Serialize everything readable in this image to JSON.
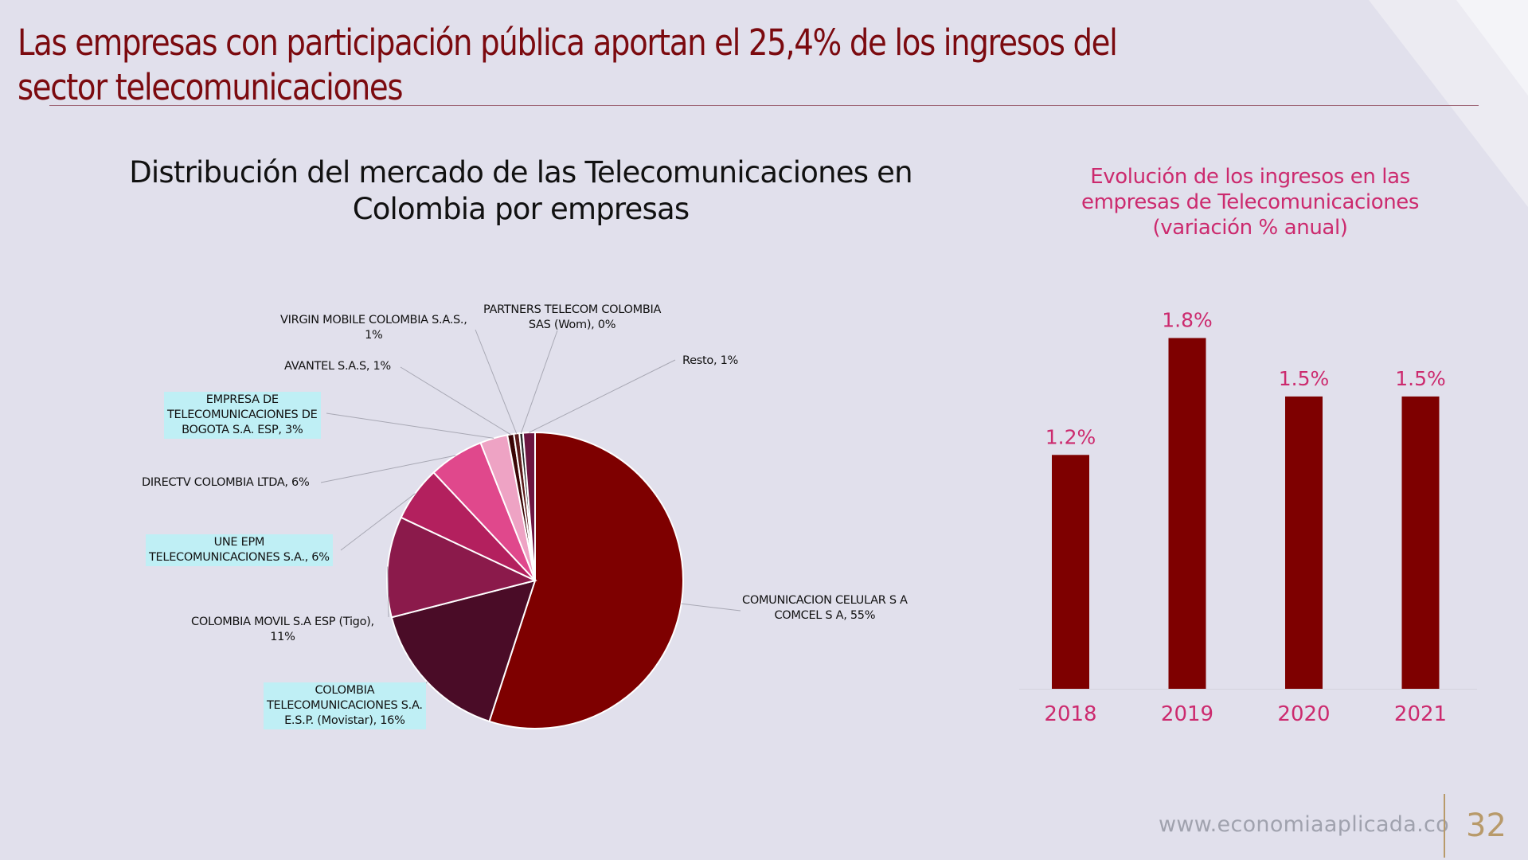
{
  "slide": {
    "title": "Las empresas con participación pública aportan el 25,4% de los ingresos del sector telecomunicaciones",
    "footer_url": "www.economiaaplicada.co",
    "page_number": "32"
  },
  "chart_data": [
    {
      "type": "pie",
      "title": "Distribución del mercado de las Telecomunicaciones en Colombia por empresas",
      "slices": [
        {
          "name": "COMUNICACION CELULAR S A COMCEL S A",
          "value": 55,
          "label": "COMUNICACION CELULAR S A\nCOMCEL S A, 55%",
          "color": "#7e0000",
          "highlight": false
        },
        {
          "name": "COLOMBIA TELECOMUNICACIONES S.A. E.S.P. (Movistar)",
          "value": 16,
          "label": "COLOMBIA\nTELECOMUNICACIONES S.A.\nE.S.P. (Movistar), 16%",
          "color": "#4a0c27",
          "highlight": true
        },
        {
          "name": "COLOMBIA MOVIL S.A ESP (Tigo)",
          "value": 11,
          "label": "COLOMBIA MOVIL S.A ESP (Tigo),\n11%",
          "color": "#8b1a4b",
          "highlight": false
        },
        {
          "name": "UNE EPM TELECOMUNICACIONES S.A.",
          "value": 6,
          "label": "UNE EPM\nTELECOMUNICACIONES S.A., 6%",
          "color": "#b3205e",
          "highlight": true
        },
        {
          "name": "DIRECTV COLOMBIA LTDA",
          "value": 6,
          "label": "DIRECTV COLOMBIA LTDA, 6%",
          "color": "#e0488c",
          "highlight": false
        },
        {
          "name": "EMPRESA DE TELECOMUNICACIONES DE BOGOTA S.A. ESP",
          "value": 3,
          "label": "EMPRESA DE\nTELECOMUNICACIONES DE\nBOGOTA S.A. ESP, 3%",
          "color": "#eea3c4",
          "highlight": true
        },
        {
          "name": "AVANTEL S.A.S",
          "value": 0.7,
          "label": "AVANTEL S.A.S, 1%",
          "color": "#3a0505",
          "highlight": false
        },
        {
          "name": "VIRGIN MOBILE COLOMBIA S.A.S.",
          "value": 0.6,
          "label": "VIRGIN MOBILE COLOMBIA S.A.S.,\n1%",
          "color": "#5a1a1a",
          "highlight": false
        },
        {
          "name": "PARTNERS TELECOM COLOMBIA SAS (Wom)",
          "value": 0.4,
          "label": "PARTNERS TELECOM COLOMBIA\nSAS (Wom), 0%",
          "color": "#2a2a2a",
          "highlight": false
        },
        {
          "name": "Resto",
          "value": 1.3,
          "label": "Resto, 1%",
          "color": "#6b1540",
          "highlight": false
        }
      ]
    },
    {
      "type": "bar",
      "title": "Evolución de los ingresos en las empresas de Telecomunicaciones (variación % anual)",
      "categories": [
        "2018",
        "2019",
        "2020",
        "2021"
      ],
      "values": [
        1.2,
        1.8,
        1.5,
        1.5
      ],
      "value_labels": [
        "1.2%",
        "1.8%",
        "1.5%",
        "1.5%"
      ],
      "ylim": [
        0,
        1.9
      ],
      "color": "#7e0000",
      "label_color": "#cc2a6e"
    }
  ]
}
